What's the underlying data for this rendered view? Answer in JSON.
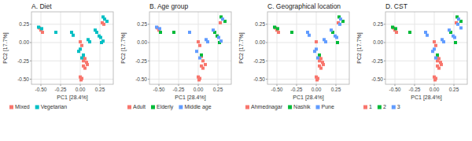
{
  "chart_data": [
    {
      "type": "scatter",
      "title": "A. Diet",
      "xlabel": "PC1 [28.4%]",
      "ylabel": "PC2 [17.7%]",
      "xlim": [
        -0.62,
        0.42
      ],
      "ylim": [
        -0.57,
        0.42
      ],
      "xticks": [
        {
          "value": -0.5,
          "label": "-0.50"
        },
        {
          "value": -0.25,
          "label": "-0.25"
        },
        {
          "value": 0.0,
          "label": "0.00"
        },
        {
          "value": 0.25,
          "label": "0.25"
        }
      ],
      "yticks": [
        {
          "value": -0.5,
          "label": "-0.50"
        },
        {
          "value": -0.25,
          "label": "-0.25"
        },
        {
          "value": 0.0,
          "label": "0.00"
        },
        {
          "value": 0.25,
          "label": "0.25"
        }
      ],
      "grid": true,
      "legend": "bottom",
      "marker": "square",
      "series": [
        {
          "name": "Mixed",
          "color": "#F8766D",
          "x": [
            -0.52,
            -0.5,
            -0.48,
            0.0,
            0.02,
            0.04,
            0.06,
            0.04,
            0.08,
            0.09,
            0.04,
            0.06,
            0.0,
            0.02,
            0.01,
            0.28,
            0.3
          ],
          "values": [
            0.2,
            0.17,
            0.14,
            0.01,
            -0.04,
            -0.19,
            -0.22,
            -0.25,
            -0.27,
            -0.3,
            -0.32,
            -0.35,
            -0.47,
            -0.49,
            -0.51,
            0.27,
            0.25
          ]
        },
        {
          "name": "Vegetarian",
          "color": "#00BFC4",
          "x": [
            -0.53,
            -0.49,
            -0.31,
            -0.11,
            -0.09,
            0.0,
            -0.02,
            0.04,
            0.02,
            0.1,
            0.12,
            0.19,
            0.21,
            0.24,
            0.26,
            0.29,
            0.31,
            0.34,
            0.27,
            0.29
          ],
          "values": [
            0.21,
            0.19,
            0.14,
            0.14,
            0.1,
            -0.09,
            -0.12,
            -0.17,
            -0.21,
            0.04,
            0.01,
            0.17,
            0.14,
            0.09,
            0.07,
            0.35,
            0.32,
            0.29,
            0.0,
            0.02
          ]
        }
      ]
    },
    {
      "type": "scatter",
      "title": "B. Age group",
      "xlabel": "PC1 [28.4%]",
      "ylabel": "PC2 [17.7%]",
      "xlim": [
        -0.62,
        0.42
      ],
      "ylim": [
        -0.57,
        0.42
      ],
      "xticks": [
        {
          "value": -0.5,
          "label": "-0.50"
        },
        {
          "value": -0.25,
          "label": "-0.25"
        },
        {
          "value": 0.0,
          "label": "0.00"
        },
        {
          "value": 0.25,
          "label": "0.25"
        }
      ],
      "yticks": [
        {
          "value": -0.5,
          "label": "-0.50"
        },
        {
          "value": -0.25,
          "label": "-0.25"
        },
        {
          "value": 0.0,
          "label": "0.00"
        },
        {
          "value": 0.25,
          "label": "0.25"
        }
      ],
      "grid": true,
      "legend": "bottom",
      "marker": "square",
      "series": [
        {
          "name": "Adult",
          "color": "#F8766D",
          "x": [
            -0.52,
            -0.5,
            0.0,
            0.02,
            0.04,
            0.06,
            0.09,
            0.04,
            0.06,
            0.0,
            0.02,
            0.01,
            0.28
          ],
          "values": [
            0.2,
            0.17,
            0.01,
            -0.04,
            -0.19,
            -0.25,
            -0.3,
            -0.32,
            -0.35,
            -0.47,
            -0.49,
            -0.51,
            0.27
          ]
        },
        {
          "name": "Elderly",
          "color": "#00BA38",
          "x": [
            -0.48,
            -0.31,
            0.04,
            0.21,
            0.24,
            0.29,
            0.34,
            0.27
          ],
          "values": [
            0.14,
            0.14,
            -0.17,
            0.14,
            0.09,
            0.35,
            0.29,
            0.0
          ]
        },
        {
          "name": "Middle age",
          "color": "#619CFF",
          "x": [
            -0.53,
            -0.49,
            -0.11,
            -0.02,
            0.02,
            0.1,
            0.12,
            0.19,
            0.26,
            0.31,
            0.29
          ],
          "values": [
            0.21,
            0.19,
            0.14,
            -0.12,
            -0.21,
            0.04,
            0.01,
            0.17,
            0.07,
            0.32,
            0.02
          ]
        }
      ]
    },
    {
      "type": "scatter",
      "title": "C. Geographical location",
      "xlabel": "PC1 [28.4%]",
      "ylabel": "PC2 [17.7%]",
      "xlim": [
        -0.62,
        0.42
      ],
      "ylim": [
        -0.57,
        0.42
      ],
      "xticks": [
        {
          "value": -0.5,
          "label": "-0.50"
        },
        {
          "value": -0.25,
          "label": "-0.25"
        },
        {
          "value": 0.0,
          "label": "0.00"
        },
        {
          "value": 0.25,
          "label": "0.25"
        }
      ],
      "yticks": [
        {
          "value": -0.5,
          "label": "-0.50"
        },
        {
          "value": -0.25,
          "label": "-0.25"
        },
        {
          "value": 0.0,
          "label": "0.00"
        },
        {
          "value": 0.25,
          "label": "0.25"
        }
      ],
      "grid": true,
      "legend": "bottom",
      "marker": "square",
      "series": [
        {
          "name": "Ahmednagar",
          "color": "#F8766D",
          "x": [
            -0.52,
            -0.5,
            -0.48,
            0.0,
            0.04,
            0.06,
            0.04,
            0.08,
            0.09,
            0.04,
            0.06,
            0.0,
            0.02,
            0.01,
            0.28
          ],
          "values": [
            0.2,
            0.17,
            0.14,
            0.01,
            -0.19,
            -0.22,
            -0.25,
            -0.27,
            -0.3,
            -0.32,
            -0.35,
            -0.47,
            -0.49,
            -0.51,
            0.27
          ]
        },
        {
          "name": "Nashik",
          "color": "#00BA38",
          "x": [
            -0.53,
            -0.49,
            -0.31,
            0.04,
            0.21,
            0.29,
            0.34,
            0.27
          ],
          "values": [
            0.21,
            0.19,
            0.14,
            -0.17,
            0.14,
            0.35,
            0.29,
            0.0
          ]
        },
        {
          "name": "Pune",
          "color": "#619CFF",
          "x": [
            -0.11,
            -0.09,
            0.0,
            -0.02,
            0.02,
            0.1,
            0.12,
            0.19,
            0.24,
            0.26,
            0.31,
            0.3
          ],
          "values": [
            0.14,
            0.1,
            -0.09,
            -0.12,
            -0.21,
            0.04,
            0.01,
            0.17,
            0.09,
            0.07,
            0.32,
            0.25
          ]
        }
      ]
    },
    {
      "type": "scatter",
      "title": "D. CST",
      "xlabel": "PC1 [28.4%]",
      "ylabel": "PC2 [17.7%]",
      "xlim": [
        -0.62,
        0.42
      ],
      "ylim": [
        -0.57,
        0.42
      ],
      "xticks": [
        {
          "value": -0.5,
          "label": "-0.50"
        },
        {
          "value": -0.25,
          "label": "-0.25"
        },
        {
          "value": 0.0,
          "label": "0.00"
        },
        {
          "value": 0.25,
          "label": "0.25"
        }
      ],
      "yticks": [
        {
          "value": -0.5,
          "label": "-0.50"
        },
        {
          "value": -0.25,
          "label": "-0.25"
        },
        {
          "value": 0.0,
          "label": "0.00"
        },
        {
          "value": 0.25,
          "label": "0.25"
        }
      ],
      "grid": true,
      "legend": "bottom",
      "marker": "square",
      "series": [
        {
          "name": "1",
          "color": "#F8766D",
          "x": [
            -0.52,
            -0.5,
            -0.48,
            0.0,
            0.02,
            0.04,
            0.06,
            0.04,
            0.08,
            0.09,
            0.04,
            0.06,
            0.0,
            0.02,
            0.01,
            0.28
          ],
          "values": [
            0.2,
            0.17,
            0.14,
            0.01,
            -0.04,
            -0.19,
            -0.22,
            -0.25,
            -0.27,
            -0.3,
            -0.32,
            -0.35,
            -0.47,
            -0.49,
            -0.51,
            0.27
          ]
        },
        {
          "name": "2",
          "color": "#00BA38",
          "x": [
            -0.53,
            -0.49,
            -0.31,
            0.04,
            0.21,
            0.29,
            0.34,
            0.27
          ],
          "values": [
            0.21,
            0.19,
            0.14,
            -0.17,
            0.14,
            0.35,
            0.29,
            0.0
          ]
        },
        {
          "name": "3",
          "color": "#619CFF",
          "x": [
            -0.11,
            -0.09,
            0.0,
            -0.02,
            0.02,
            0.1,
            0.12,
            0.19,
            0.24,
            0.26,
            0.31,
            0.3,
            0.34
          ],
          "values": [
            0.14,
            0.1,
            -0.09,
            -0.12,
            -0.21,
            0.04,
            0.01,
            0.17,
            0.09,
            0.07,
            0.32,
            0.25,
            0.2
          ]
        }
      ]
    }
  ]
}
